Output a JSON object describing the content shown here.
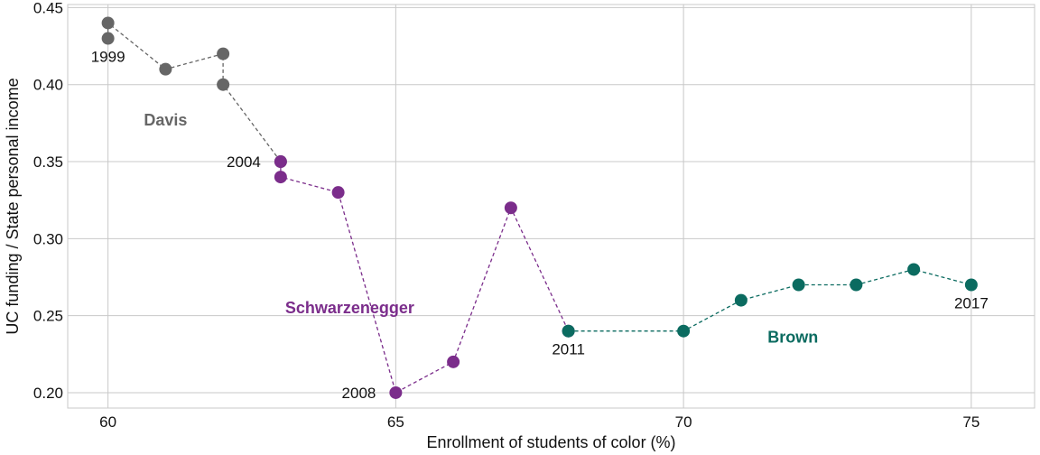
{
  "chart_data": {
    "type": "scatter",
    "xlabel": "Enrollment of students of color (%)",
    "ylabel": "UC funding / State  personal income",
    "xlim": [
      59.3,
      76.1
    ],
    "ylim": [
      0.19,
      0.452
    ],
    "x_ticks": [
      60,
      65,
      70,
      75
    ],
    "y_ticks": [
      0.2,
      0.25,
      0.3,
      0.35,
      0.4,
      0.45
    ],
    "x_tick_labels": [
      "60",
      "65",
      "70",
      "75"
    ],
    "y_tick_labels": [
      "0.20",
      "0.25",
      "0.30",
      "0.35",
      "0.40",
      "0.45"
    ],
    "grid": true,
    "legend": "none",
    "series": [
      {
        "name": "Davis",
        "color": "#666666",
        "points": [
          {
            "x": 60,
            "y": 0.43
          },
          {
            "x": 60,
            "y": 0.44
          },
          {
            "x": 61,
            "y": 0.41
          },
          {
            "x": 62,
            "y": 0.42
          },
          {
            "x": 62,
            "y": 0.4
          },
          {
            "x": 63,
            "y": 0.35
          }
        ]
      },
      {
        "name": "Schwarzenegger",
        "color": "#7b2d8b",
        "points": [
          {
            "x": 63,
            "y": 0.35
          },
          {
            "x": 63,
            "y": 0.34
          },
          {
            "x": 64,
            "y": 0.33
          },
          {
            "x": 65,
            "y": 0.2
          },
          {
            "x": 66,
            "y": 0.22
          },
          {
            "x": 67,
            "y": 0.32
          },
          {
            "x": 68,
            "y": 0.24
          }
        ]
      },
      {
        "name": "Brown",
        "color": "#0b6b60",
        "points": [
          {
            "x": 68,
            "y": 0.24
          },
          {
            "x": 70,
            "y": 0.24
          },
          {
            "x": 71,
            "y": 0.26
          },
          {
            "x": 72,
            "y": 0.27
          },
          {
            "x": 73,
            "y": 0.27
          },
          {
            "x": 74,
            "y": 0.28
          },
          {
            "x": 75,
            "y": 0.27
          }
        ]
      }
    ],
    "point_annotations": [
      {
        "text": "1999",
        "x": 60,
        "y": 0.43,
        "anchor": "middle",
        "pos": "below"
      },
      {
        "text": "2004",
        "x": 63,
        "y": 0.35,
        "anchor": "end",
        "pos": "left"
      },
      {
        "text": "2008",
        "x": 65,
        "y": 0.2,
        "anchor": "end",
        "pos": "left"
      },
      {
        "text": "2011",
        "x": 68,
        "y": 0.24,
        "anchor": "middle",
        "pos": "below"
      },
      {
        "text": "2017",
        "x": 75,
        "y": 0.27,
        "anchor": "middle",
        "pos": "below"
      }
    ],
    "era_annotations": [
      {
        "text": "Davis",
        "x": 61,
        "y": 0.377,
        "color": "#666666"
      },
      {
        "text": "Schwarzenegger",
        "x": 64.2,
        "y": 0.255,
        "color": "#7b2d8b"
      },
      {
        "text": "Brown",
        "x": 71.9,
        "y": 0.236,
        "color": "#0b6b60"
      }
    ]
  }
}
